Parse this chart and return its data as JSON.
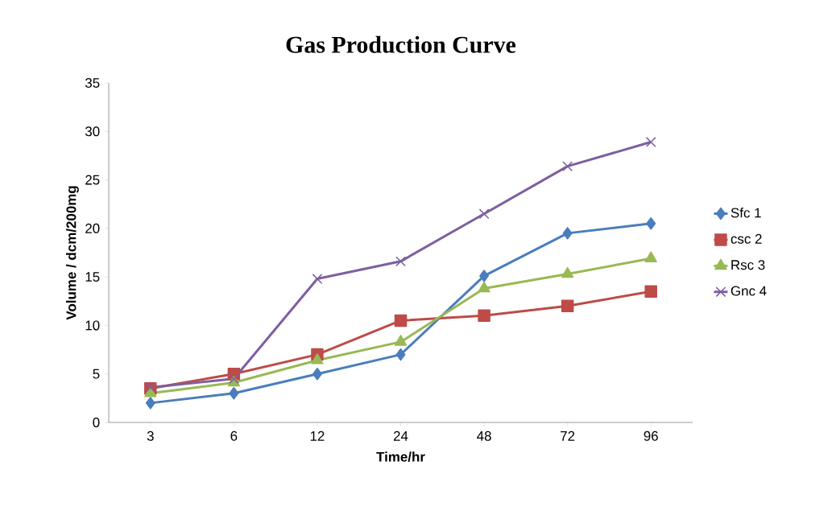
{
  "chart_data": {
    "type": "line",
    "title": "Gas Production Curve",
    "xlabel": "Time/hr",
    "ylabel": "Volume / dcm/200mg",
    "categories": [
      "3",
      "6",
      "12",
      "24",
      "48",
      "72",
      "96"
    ],
    "series": [
      {
        "name": "Sfc 1",
        "color": "#4a7ebb",
        "marker": "diamond",
        "values": [
          2,
          3,
          5,
          7,
          15.1,
          19.5,
          20.5
        ]
      },
      {
        "name": "csc 2",
        "color": "#be4b48",
        "marker": "square",
        "values": [
          3.5,
          5,
          7,
          10.5,
          11,
          12,
          13.5
        ]
      },
      {
        "name": "Rsc 3",
        "color": "#98b954",
        "marker": "triangle",
        "values": [
          3,
          4.1,
          6.4,
          8.3,
          13.8,
          15.3,
          16.9
        ]
      },
      {
        "name": "Gnc 4",
        "color": "#7d5fa0",
        "marker": "cross",
        "values": [
          3.6,
          4.5,
          14.8,
          16.6,
          21.5,
          26.4,
          28.9
        ]
      }
    ],
    "ylim": [
      0,
      35
    ],
    "yticks": [
      0,
      5,
      10,
      15,
      20,
      25,
      30,
      35
    ],
    "grid": false,
    "legend": "right",
    "line_style": "solid"
  }
}
